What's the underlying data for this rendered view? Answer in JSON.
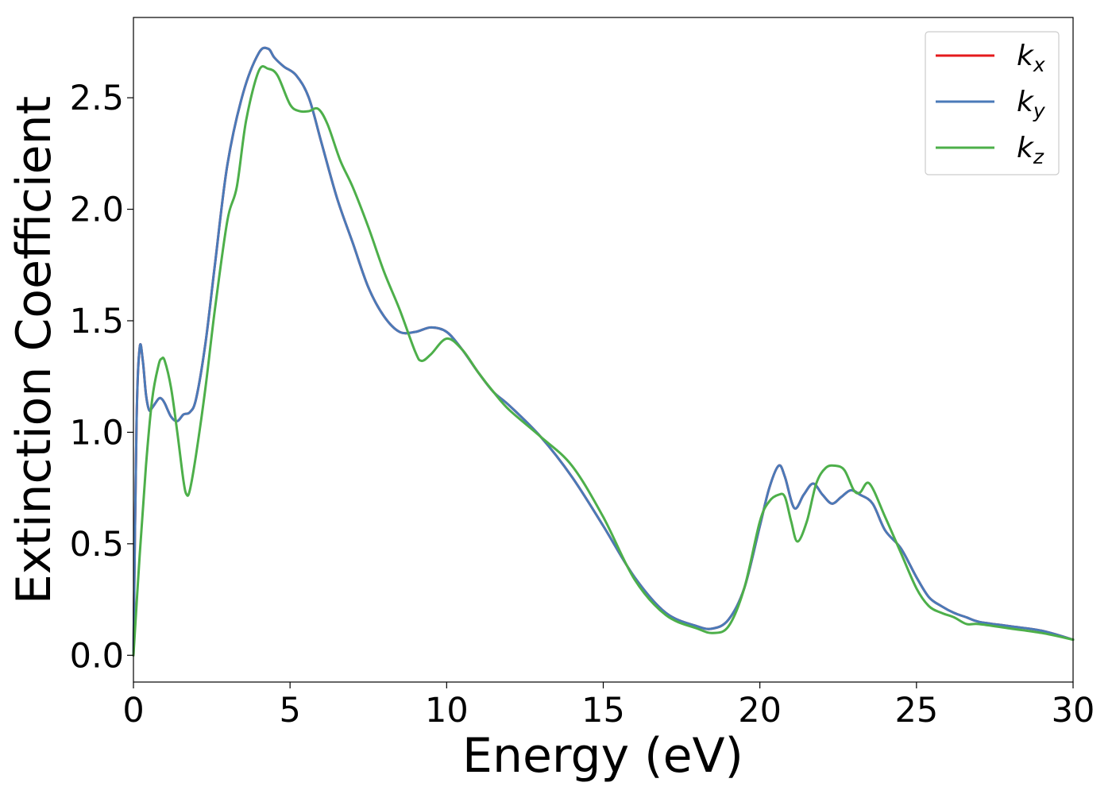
{
  "chart_data": {
    "type": "line",
    "xlabel": "Energy (eV)",
    "ylabel": "Extinction Coefficient",
    "xlim": [
      0,
      30
    ],
    "ylim": [
      -0.12,
      2.86
    ],
    "xticks": [
      0,
      5,
      10,
      15,
      20,
      25,
      30
    ],
    "yticks": [
      0.0,
      0.5,
      1.0,
      1.5,
      2.0,
      2.5
    ],
    "xtick_labels": [
      "0",
      "5",
      "10",
      "15",
      "20",
      "25",
      "30"
    ],
    "ytick_labels": [
      "0.0",
      "0.5",
      "1.0",
      "1.5",
      "2.0",
      "2.5"
    ],
    "grid": false,
    "legend_position": "top-right",
    "series": [
      {
        "name": "k_x",
        "label_main": "k",
        "label_sub": "x",
        "color": "#e41a1c",
        "x": [
          0,
          0.1,
          0.2,
          0.3,
          0.4,
          0.5,
          0.6,
          0.8,
          0.9,
          1.0,
          1.2,
          1.4,
          1.6,
          1.8,
          2.0,
          2.3,
          2.6,
          3.0,
          3.5,
          4.0,
          4.3,
          4.5,
          4.8,
          5.2,
          5.6,
          6.0,
          6.5,
          7.0,
          7.5,
          8.0,
          8.5,
          9.0,
          9.5,
          10.0,
          10.5,
          11.0,
          11.5,
          12.0,
          13.0,
          14.0,
          15.0,
          16.0,
          17.0,
          18.0,
          18.5,
          19.0,
          19.5,
          20.0,
          20.3,
          20.6,
          20.8,
          21.1,
          21.4,
          21.7,
          22.0,
          22.3,
          22.6,
          22.9,
          23.2,
          23.6,
          24.0,
          24.5,
          25.0,
          25.4,
          25.8,
          26.2,
          26.6,
          27.0,
          28.0,
          29.0,
          30.0
        ],
        "y": [
          0.0,
          1.05,
          1.38,
          1.32,
          1.17,
          1.1,
          1.11,
          1.15,
          1.15,
          1.13,
          1.07,
          1.05,
          1.08,
          1.09,
          1.15,
          1.4,
          1.75,
          2.2,
          2.52,
          2.7,
          2.72,
          2.68,
          2.64,
          2.6,
          2.5,
          2.3,
          2.05,
          1.85,
          1.65,
          1.52,
          1.45,
          1.45,
          1.47,
          1.45,
          1.37,
          1.27,
          1.18,
          1.12,
          0.98,
          0.8,
          0.58,
          0.35,
          0.19,
          0.13,
          0.12,
          0.16,
          0.3,
          0.58,
          0.75,
          0.85,
          0.8,
          0.66,
          0.72,
          0.77,
          0.72,
          0.68,
          0.71,
          0.74,
          0.72,
          0.68,
          0.56,
          0.48,
          0.35,
          0.26,
          0.22,
          0.19,
          0.17,
          0.15,
          0.13,
          0.11,
          0.07
        ]
      },
      {
        "name": "k_y",
        "label_main": "k",
        "label_sub": "y",
        "color": "#4a7ab8",
        "x": [
          0,
          0.1,
          0.2,
          0.3,
          0.4,
          0.5,
          0.6,
          0.8,
          0.9,
          1.0,
          1.2,
          1.4,
          1.6,
          1.8,
          2.0,
          2.3,
          2.6,
          3.0,
          3.5,
          4.0,
          4.3,
          4.5,
          4.8,
          5.2,
          5.6,
          6.0,
          6.5,
          7.0,
          7.5,
          8.0,
          8.5,
          9.0,
          9.5,
          10.0,
          10.5,
          11.0,
          11.5,
          12.0,
          13.0,
          14.0,
          15.0,
          16.0,
          17.0,
          18.0,
          18.5,
          19.0,
          19.5,
          20.0,
          20.3,
          20.6,
          20.8,
          21.1,
          21.4,
          21.7,
          22.0,
          22.3,
          22.6,
          22.9,
          23.2,
          23.6,
          24.0,
          24.5,
          25.0,
          25.4,
          25.8,
          26.2,
          26.6,
          27.0,
          28.0,
          29.0,
          30.0
        ],
        "y": [
          0.0,
          1.05,
          1.38,
          1.32,
          1.17,
          1.1,
          1.11,
          1.15,
          1.15,
          1.13,
          1.07,
          1.05,
          1.08,
          1.09,
          1.15,
          1.4,
          1.75,
          2.2,
          2.52,
          2.7,
          2.72,
          2.68,
          2.64,
          2.6,
          2.5,
          2.3,
          2.05,
          1.85,
          1.65,
          1.52,
          1.45,
          1.45,
          1.47,
          1.45,
          1.37,
          1.27,
          1.18,
          1.12,
          0.98,
          0.8,
          0.58,
          0.35,
          0.19,
          0.13,
          0.12,
          0.16,
          0.3,
          0.58,
          0.75,
          0.85,
          0.8,
          0.66,
          0.72,
          0.77,
          0.72,
          0.68,
          0.71,
          0.74,
          0.72,
          0.68,
          0.56,
          0.48,
          0.35,
          0.26,
          0.22,
          0.19,
          0.17,
          0.15,
          0.13,
          0.11,
          0.07
        ]
      },
      {
        "name": "k_z",
        "label_main": "k",
        "label_sub": "z",
        "color": "#4daf4a",
        "x": [
          0,
          0.2,
          0.4,
          0.6,
          0.8,
          0.9,
          1.0,
          1.2,
          1.4,
          1.6,
          1.7,
          1.8,
          2.0,
          2.3,
          2.6,
          3.0,
          3.3,
          3.6,
          4.0,
          4.3,
          4.6,
          5.0,
          5.3,
          5.6,
          5.9,
          6.2,
          6.6,
          7.0,
          7.5,
          8.0,
          8.5,
          9.0,
          9.2,
          9.5,
          10.0,
          10.5,
          11.0,
          11.5,
          12.0,
          13.0,
          14.0,
          15.0,
          16.0,
          17.0,
          18.0,
          18.5,
          19.0,
          19.5,
          20.0,
          20.3,
          20.6,
          20.8,
          21.0,
          21.2,
          21.5,
          21.8,
          22.1,
          22.4,
          22.7,
          23.0,
          23.2,
          23.5,
          24.0,
          24.5,
          25.0,
          25.4,
          25.8,
          26.2,
          26.6,
          27.0,
          28.0,
          29.0,
          30.0
        ],
        "y": [
          0.0,
          0.45,
          0.85,
          1.15,
          1.3,
          1.33,
          1.32,
          1.2,
          1.0,
          0.78,
          0.72,
          0.74,
          0.9,
          1.2,
          1.55,
          1.95,
          2.1,
          2.4,
          2.62,
          2.63,
          2.6,
          2.47,
          2.44,
          2.44,
          2.45,
          2.38,
          2.22,
          2.1,
          1.92,
          1.72,
          1.55,
          1.36,
          1.32,
          1.35,
          1.42,
          1.37,
          1.27,
          1.18,
          1.1,
          0.98,
          0.85,
          0.62,
          0.34,
          0.18,
          0.12,
          0.1,
          0.13,
          0.3,
          0.6,
          0.69,
          0.72,
          0.71,
          0.6,
          0.51,
          0.6,
          0.77,
          0.84,
          0.85,
          0.83,
          0.74,
          0.73,
          0.77,
          0.62,
          0.46,
          0.3,
          0.22,
          0.19,
          0.17,
          0.14,
          0.14,
          0.12,
          0.1,
          0.07
        ]
      }
    ]
  }
}
